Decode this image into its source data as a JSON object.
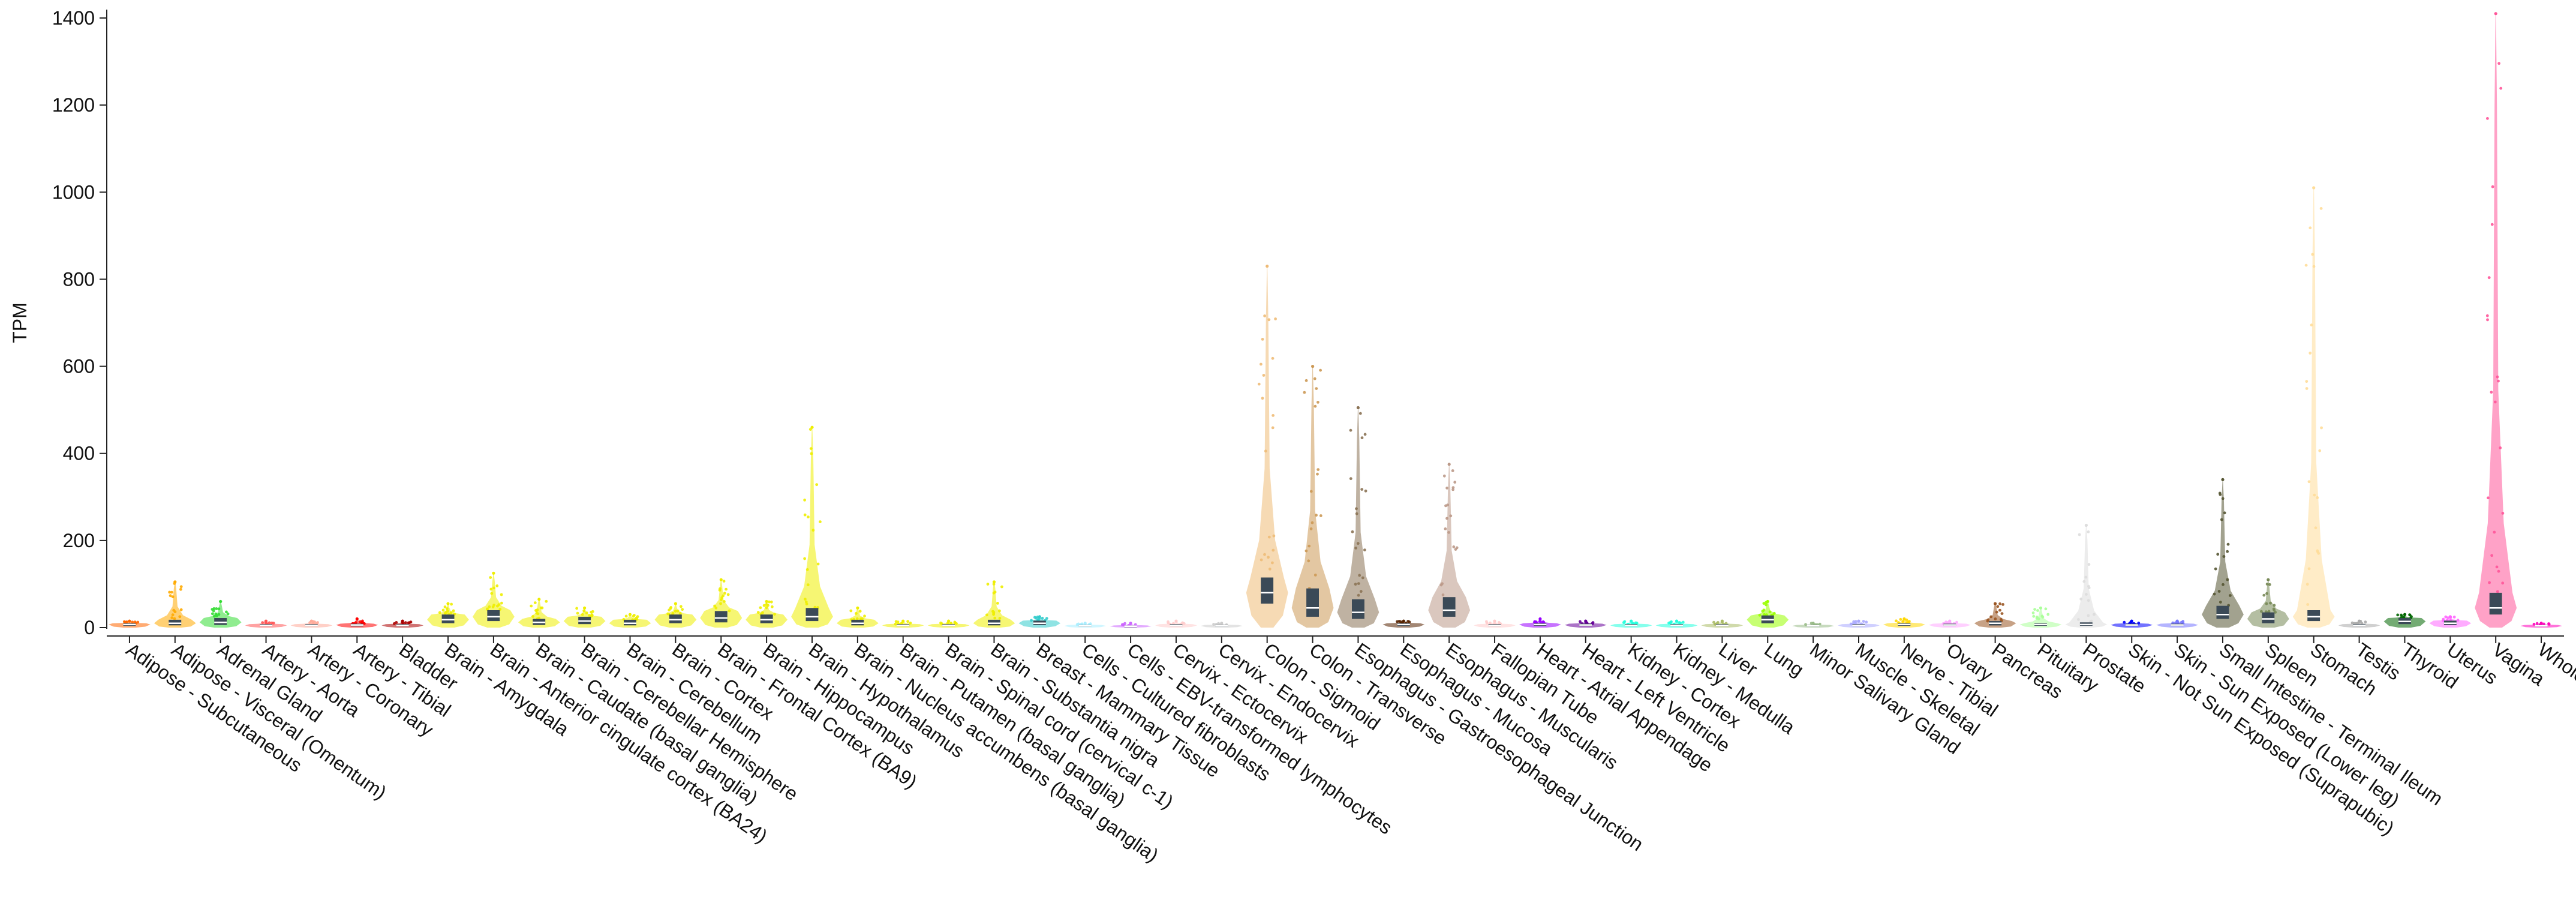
{
  "chart_data": {
    "type": "violin",
    "ylabel": "TPM",
    "xlabel": "",
    "ylim": [
      0,
      1400
    ],
    "yticks": [
      "0",
      "200",
      "400",
      "600",
      "800",
      "1000",
      "1200",
      "1400"
    ],
    "ytick_values": [
      0,
      200,
      400,
      600,
      800,
      1000,
      1200,
      1400
    ],
    "grid": false,
    "tissues": [
      {
        "name": "Adipose - Subcutaneous",
        "color": "#FF6600",
        "max": 15,
        "q1": 4,
        "median": 7,
        "q3": 10
      },
      {
        "name": "Adipose - Visceral (Omentum)",
        "color": "#FFAA00",
        "max": 105,
        "q1": 5,
        "median": 10,
        "q3": 18
      },
      {
        "name": "Adrenal Gland",
        "color": "#33DD33",
        "max": 60,
        "q1": 6,
        "median": 12,
        "q3": 22
      },
      {
        "name": "Artery - Aorta",
        "color": "#FF5555",
        "max": 15,
        "q1": 3,
        "median": 5,
        "q3": 8
      },
      {
        "name": "Artery - Coronary",
        "color": "#FFAA99",
        "max": 15,
        "q1": 3,
        "median": 5,
        "q3": 8
      },
      {
        "name": "Artery - Tibial",
        "color": "#FF0000",
        "max": 20,
        "q1": 3,
        "median": 6,
        "q3": 9
      },
      {
        "name": "Bladder",
        "color": "#AA0000",
        "max": 15,
        "q1": 3,
        "median": 5,
        "q3": 8
      },
      {
        "name": "Brain - Amygdala",
        "color": "#EEEE00",
        "max": 55,
        "q1": 10,
        "median": 18,
        "q3": 30
      },
      {
        "name": "Brain - Anterior cingulate cortex (BA24)",
        "color": "#EEEE00",
        "max": 125,
        "q1": 15,
        "median": 25,
        "q3": 40
      },
      {
        "name": "Brain - Caudate (basal ganglia)",
        "color": "#EEEE00",
        "max": 65,
        "q1": 6,
        "median": 12,
        "q3": 20
      },
      {
        "name": "Brain - Cerebellar Hemisphere",
        "color": "#EEEE00",
        "max": 45,
        "q1": 8,
        "median": 15,
        "q3": 25
      },
      {
        "name": "Brain - Cerebellum",
        "color": "#EEEE00",
        "max": 30,
        "q1": 5,
        "median": 10,
        "q3": 18
      },
      {
        "name": "Brain - Cortex",
        "color": "#EEEE00",
        "max": 55,
        "q1": 10,
        "median": 18,
        "q3": 30
      },
      {
        "name": "Brain - Frontal Cortex (BA9)",
        "color": "#EEEE00",
        "max": 110,
        "q1": 12,
        "median": 22,
        "q3": 38
      },
      {
        "name": "Brain - Hippocampus",
        "color": "#EEEE00",
        "max": 60,
        "q1": 10,
        "median": 18,
        "q3": 30
      },
      {
        "name": "Brain - Hypothalamus",
        "color": "#EEEE00",
        "max": 460,
        "q1": 15,
        "median": 25,
        "q3": 45
      },
      {
        "name": "Brain - Nucleus accumbens (basal ganglia)",
        "color": "#EEEE00",
        "max": 45,
        "q1": 5,
        "median": 10,
        "q3": 18
      },
      {
        "name": "Brain - Putamen (basal ganglia)",
        "color": "#EEEE00",
        "max": 15,
        "q1": 3,
        "median": 5,
        "q3": 8
      },
      {
        "name": "Brain - Spinal cord (cervical c-1)",
        "color": "#EEEE00",
        "max": 15,
        "q1": 3,
        "median": 5,
        "q3": 8
      },
      {
        "name": "Brain - Substantia nigra",
        "color": "#EEEE00",
        "max": 105,
        "q1": 5,
        "median": 10,
        "q3": 18
      },
      {
        "name": "Breast - Mammary Tissue",
        "color": "#33CCCC",
        "max": 25,
        "q1": 6,
        "median": 10,
        "q3": 16
      },
      {
        "name": "Cells - Cultured fibroblasts",
        "color": "#AAEEFF",
        "max": 10,
        "q1": 2,
        "median": 4,
        "q3": 6
      },
      {
        "name": "Cells - EBV-transformed lymphocytes",
        "color": "#CC66FF",
        "max": 10,
        "q1": 2,
        "median": 3,
        "q3": 5
      },
      {
        "name": "Cervix - Ectocervix",
        "color": "#FFCCCC",
        "max": 15,
        "q1": 3,
        "median": 5,
        "q3": 8
      },
      {
        "name": "Cervix - Endocervix",
        "color": "#CCCCCC",
        "max": 10,
        "q1": 2,
        "median": 4,
        "q3": 6
      },
      {
        "name": "Colon - Sigmoid",
        "color": "#EEBB77",
        "max": 830,
        "q1": 55,
        "median": 80,
        "q3": 115
      },
      {
        "name": "Colon - Transverse",
        "color": "#CC9955",
        "max": 600,
        "q1": 25,
        "median": 45,
        "q3": 90
      },
      {
        "name": "Esophagus - Gastroesophageal Junction",
        "color": "#8B7355",
        "max": 505,
        "q1": 20,
        "median": 35,
        "q3": 65
      },
      {
        "name": "Esophagus - Mucosa",
        "color": "#552200",
        "max": 15,
        "q1": 4,
        "median": 7,
        "q3": 10
      },
      {
        "name": "Esophagus - Muscularis",
        "color": "#BB9988",
        "max": 375,
        "q1": 25,
        "median": 40,
        "q3": 70
      },
      {
        "name": "Fallopian Tube",
        "color": "#FFCCCC",
        "max": 15,
        "q1": 3,
        "median": 5,
        "q3": 8
      },
      {
        "name": "Heart - Atrial Appendage",
        "color": "#9900FF",
        "max": 20,
        "q1": 4,
        "median": 7,
        "q3": 10
      },
      {
        "name": "Heart - Left Ventricle",
        "color": "#660099",
        "max": 15,
        "q1": 4,
        "median": 6,
        "q3": 9
      },
      {
        "name": "Kidney - Cortex",
        "color": "#22FFDD",
        "max": 15,
        "q1": 3,
        "median": 5,
        "q3": 8
      },
      {
        "name": "Kidney - Medulla",
        "color": "#22FFDD",
        "max": 15,
        "q1": 3,
        "median": 5,
        "q3": 8
      },
      {
        "name": "Liver",
        "color": "#AABB66",
        "max": 15,
        "q1": 3,
        "median": 5,
        "q3": 8
      },
      {
        "name": "Lung",
        "color": "#99FF00",
        "max": 60,
        "q1": 10,
        "median": 18,
        "q3": 28
      },
      {
        "name": "Minor Salivary Gland",
        "color": "#99BB88",
        "max": 10,
        "q1": 2,
        "median": 4,
        "q3": 6
      },
      {
        "name": "Muscle - Skeletal",
        "color": "#AAAAFF",
        "max": 15,
        "q1": 3,
        "median": 5,
        "q3": 8
      },
      {
        "name": "Nerve - Tibial",
        "color": "#FFD700",
        "max": 20,
        "q1": 4,
        "median": 7,
        "q3": 10
      },
      {
        "name": "Ovary",
        "color": "#FFAAFF",
        "max": 15,
        "q1": 4,
        "median": 6,
        "q3": 9
      },
      {
        "name": "Pancreas",
        "color": "#995522",
        "max": 55,
        "q1": 5,
        "median": 10,
        "q3": 15
      },
      {
        "name": "Pituitary",
        "color": "#AAFF99",
        "max": 45,
        "q1": 4,
        "median": 7,
        "q3": 10
      },
      {
        "name": "Prostate",
        "color": "#DDDDDD",
        "max": 235,
        "q1": 4,
        "median": 7,
        "q3": 12
      },
      {
        "name": "Skin - Not Sun Exposed (Suprapubic)",
        "color": "#0000FF",
        "max": 15,
        "q1": 4,
        "median": 6,
        "q3": 9
      },
      {
        "name": "Skin - Sun Exposed (Lower leg)",
        "color": "#7777FF",
        "max": 15,
        "q1": 4,
        "median": 6,
        "q3": 9
      },
      {
        "name": "Small Intestine - Terminal Ileum",
        "color": "#555533",
        "max": 340,
        "q1": 20,
        "median": 30,
        "q3": 50
      },
      {
        "name": "Spleen",
        "color": "#778855",
        "max": 110,
        "q1": 10,
        "median": 20,
        "q3": 35
      },
      {
        "name": "Stomach",
        "color": "#FFDD99",
        "max": 1010,
        "q1": 15,
        "median": 25,
        "q3": 40
      },
      {
        "name": "Testis",
        "color": "#AAAAAA",
        "max": 15,
        "q1": 3,
        "median": 5,
        "q3": 8
      },
      {
        "name": "Thyroid",
        "color": "#006600",
        "max": 30,
        "q1": 8,
        "median": 14,
        "q3": 22
      },
      {
        "name": "Uterus",
        "color": "#FF66FF",
        "max": 25,
        "q1": 6,
        "median": 10,
        "q3": 16
      },
      {
        "name": "Vagina",
        "color": "#FF5599",
        "max": 1410,
        "q1": 30,
        "median": 45,
        "q3": 80
      },
      {
        "name": "Whole Blood",
        "color": "#FF00BB",
        "max": 10,
        "q1": 2,
        "median": 4,
        "q3": 6
      }
    ]
  }
}
